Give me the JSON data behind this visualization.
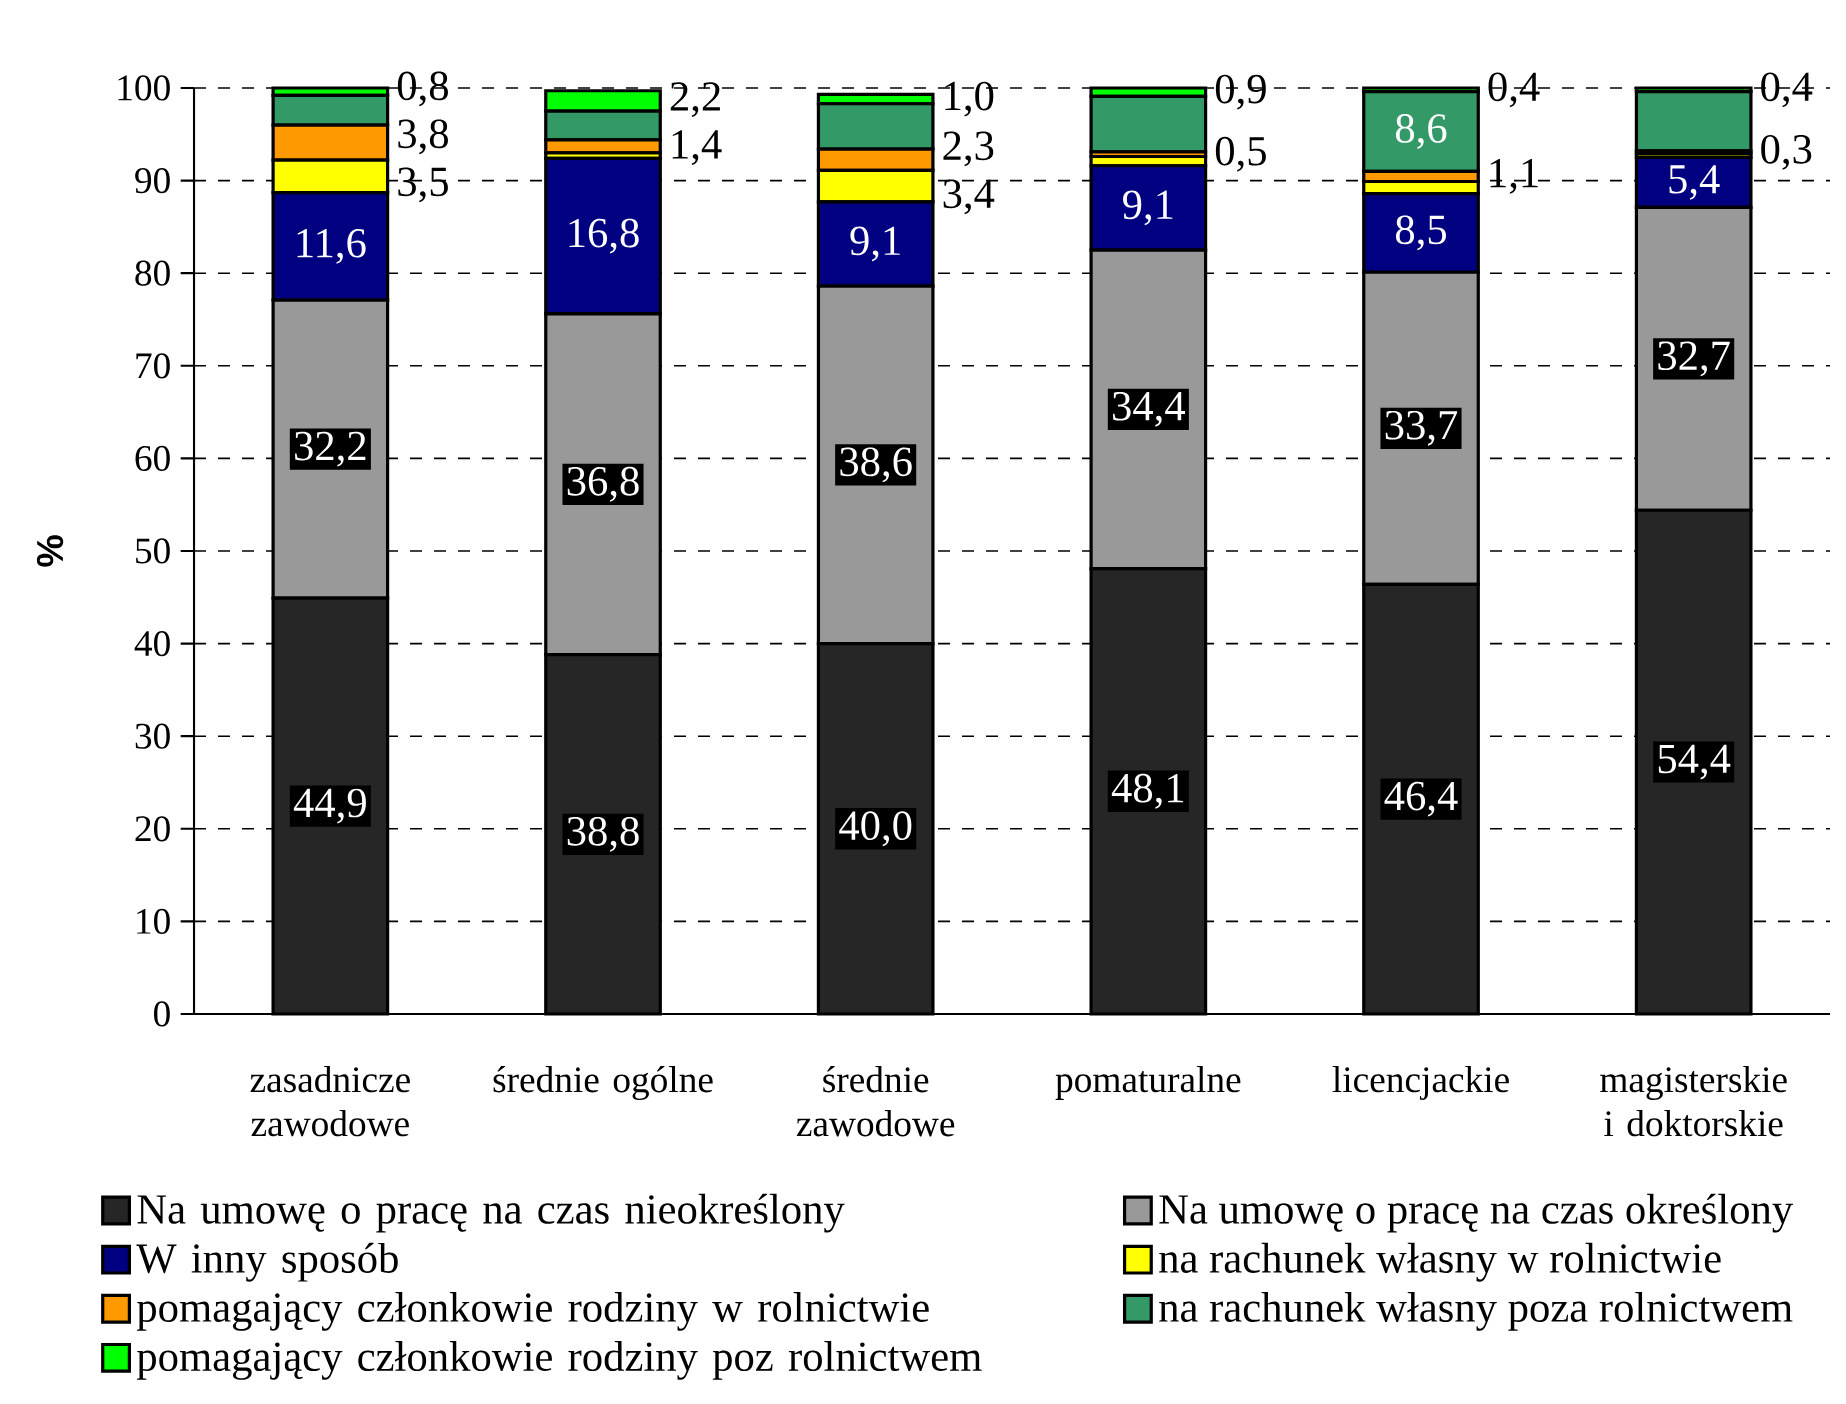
{
  "chart_data": {
    "type": "bar",
    "stacked": true,
    "ylabel": "%",
    "categories": [
      "zasadnicze zawodowe",
      "średnie ogólne",
      "średnie zawodowe",
      "pomaturalne",
      "licencjackie",
      "magisterskie i doktorskie"
    ],
    "series": [
      {
        "name": "Na umowę o pracę na czas nieokreślony",
        "color": "#262626",
        "values": [
          44.9,
          38.8,
          40.0,
          48.1,
          46.4,
          54.4
        ],
        "value_labels": [
          "44,9",
          "38,8",
          "40,0",
          "48,1",
          "46,4",
          "54,4"
        ]
      },
      {
        "name": "Na umowę o pracę na czas określony",
        "color": "#999999",
        "values": [
          32.2,
          36.8,
          38.6,
          34.4,
          33.7,
          32.7
        ],
        "value_labels": [
          "32,2",
          "36,8",
          "38,6",
          "34,4",
          "33,7",
          "32,7"
        ]
      },
      {
        "name": "W inny sposób",
        "color": "#000080",
        "values": [
          11.6,
          16.8,
          9.1,
          9.1,
          8.5,
          5.4
        ],
        "value_labels": [
          "11,6",
          "16,8",
          "9,1",
          "9,1",
          "8,5",
          "5,4"
        ]
      },
      {
        "name": "na rachunek własny w rolnictwie",
        "color": "#ffff00",
        "values": [
          3.5,
          0.6,
          3.4,
          1.0,
          1.3,
          0.4
        ],
        "value_labels": [
          "3,5",
          null,
          "3,4",
          null,
          null,
          null
        ]
      },
      {
        "name": "pomagający członkowie rodziny w rolnictwie",
        "color": "#ff9900",
        "values": [
          3.8,
          1.4,
          2.3,
          0.5,
          1.1,
          0.3
        ],
        "value_labels": [
          "3,8",
          "1,4",
          "2,3",
          "0,5",
          "1,1",
          "0,3"
        ]
      },
      {
        "name": "na rachunek własny poza rolnictwem",
        "color": "#339966",
        "values": [
          3.2,
          3.1,
          4.9,
          6.0,
          8.6,
          6.4
        ],
        "value_labels": [
          null,
          null,
          null,
          null,
          "8,6",
          null
        ]
      },
      {
        "name": "pomagający członkowie rodziny poz rolnictwem",
        "color": "#00ff00",
        "values": [
          0.8,
          2.2,
          1.0,
          0.9,
          0.4,
          0.4
        ],
        "value_labels": [
          "0,8",
          "2,2",
          "1,0",
          "0,9",
          "0,4",
          "0,4"
        ]
      }
    ],
    "ylim": [
      0,
      100
    ],
    "yticks": [
      0,
      10,
      20,
      30,
      40,
      50,
      60,
      70,
      80,
      90,
      100
    ],
    "grid": "y",
    "legend": "bottom"
  }
}
